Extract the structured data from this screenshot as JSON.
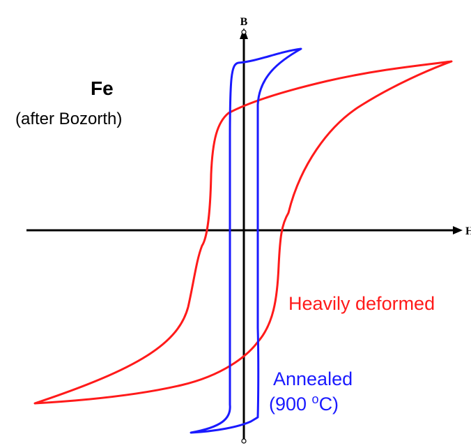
{
  "title": {
    "material": "Fe",
    "source": "(after Bozorth)"
  },
  "axes": {
    "x_label": "H",
    "y_label": "B"
  },
  "curves": {
    "deformed": {
      "label": "Heavily deformed",
      "color": "#ff1a1a"
    },
    "annealed": {
      "label_line1": "Annealed",
      "label_line2_prefix": "(900 ",
      "label_line2_sup": "o",
      "label_line2_suffix": "C)",
      "color": "#1a1aff"
    }
  },
  "colors": {
    "axis": "#000000",
    "text": "#000000"
  }
}
